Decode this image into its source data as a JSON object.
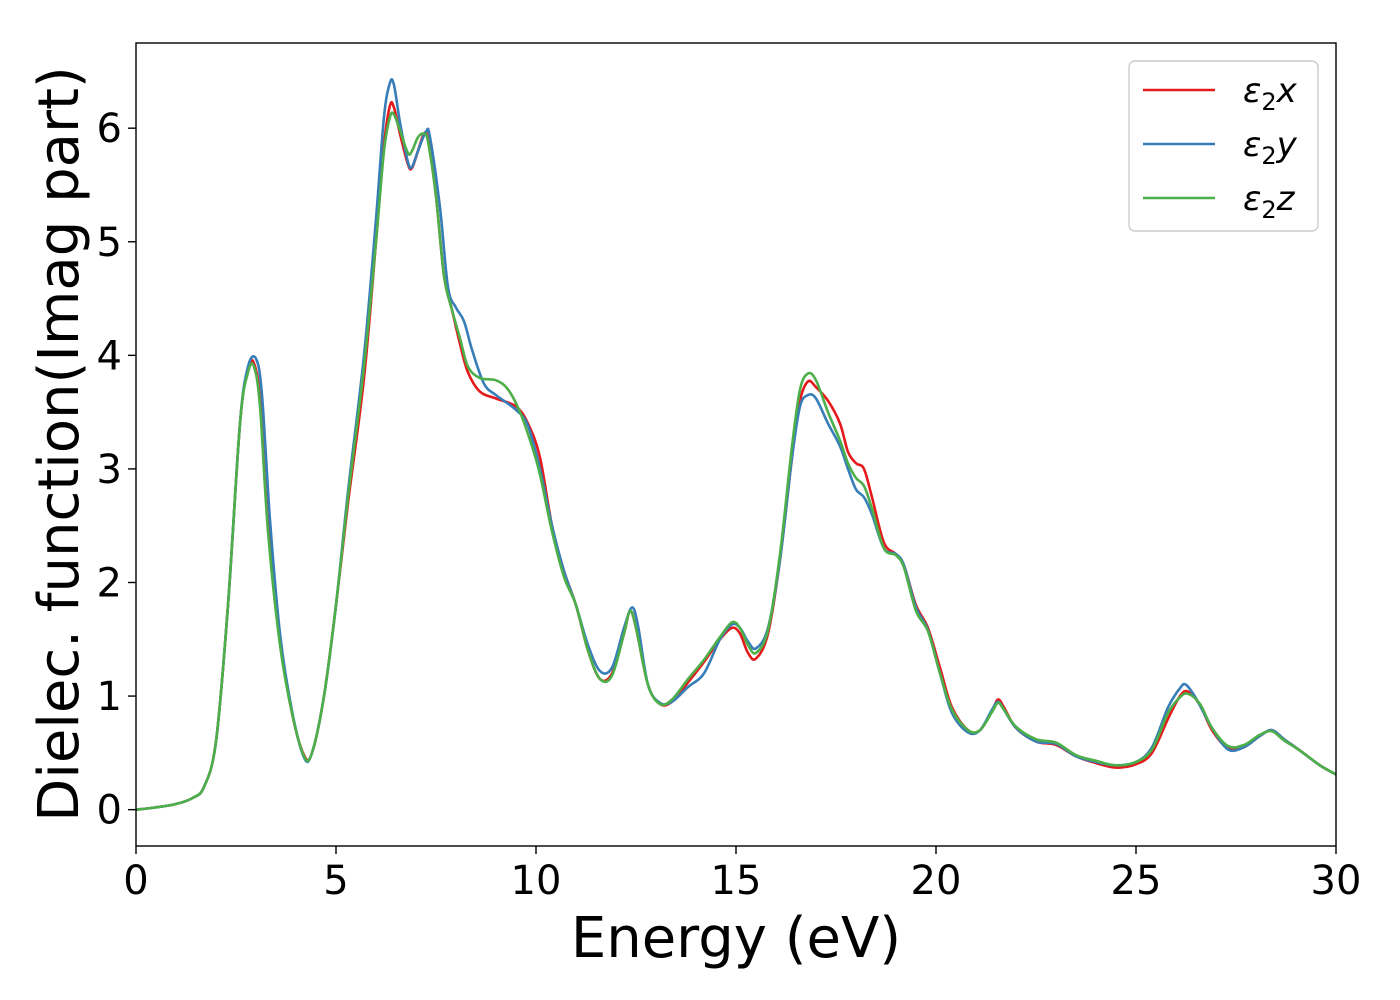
{
  "chart_data": {
    "type": "line",
    "xlabel": "Energy (eV)",
    "ylabel": "Dielec. function(Imag part)",
    "xlim": [
      0,
      30
    ],
    "ylim": [
      -0.32,
      6.75
    ],
    "xticks": [
      0,
      5,
      10,
      15,
      20,
      25,
      30
    ],
    "yticks": [
      0,
      1,
      2,
      3,
      4,
      5,
      6
    ],
    "grid": false,
    "legend_position": "top-right",
    "series": [
      {
        "name": "ε₂x",
        "legend_main": "ε",
        "legend_sub": "2",
        "legend_axis": "x",
        "color": "#e41a1c",
        "points": [
          [
            0,
            0.0
          ],
          [
            0.5,
            0.02
          ],
          [
            1.0,
            0.05
          ],
          [
            1.4,
            0.1
          ],
          [
            1.7,
            0.2
          ],
          [
            2.0,
            0.6
          ],
          [
            2.3,
            1.8
          ],
          [
            2.6,
            3.4
          ],
          [
            2.8,
            3.88
          ],
          [
            2.95,
            3.93
          ],
          [
            3.1,
            3.6
          ],
          [
            3.3,
            2.5
          ],
          [
            3.6,
            1.5
          ],
          [
            3.9,
            0.85
          ],
          [
            4.2,
            0.48
          ],
          [
            4.4,
            0.5
          ],
          [
            4.7,
            1.0
          ],
          [
            5.0,
            1.8
          ],
          [
            5.3,
            2.7
          ],
          [
            5.7,
            3.8
          ],
          [
            6.0,
            5.0
          ],
          [
            6.2,
            5.85
          ],
          [
            6.35,
            6.2
          ],
          [
            6.45,
            6.18
          ],
          [
            6.6,
            5.95
          ],
          [
            6.8,
            5.68
          ],
          [
            6.9,
            5.65
          ],
          [
            7.05,
            5.8
          ],
          [
            7.2,
            5.95
          ],
          [
            7.3,
            5.9
          ],
          [
            7.5,
            5.4
          ],
          [
            7.7,
            4.7
          ],
          [
            7.9,
            4.4
          ],
          [
            8.1,
            4.1
          ],
          [
            8.3,
            3.85
          ],
          [
            8.6,
            3.68
          ],
          [
            9.0,
            3.62
          ],
          [
            9.5,
            3.55
          ],
          [
            9.8,
            3.4
          ],
          [
            10.1,
            3.1
          ],
          [
            10.4,
            2.5
          ],
          [
            10.7,
            2.1
          ],
          [
            11.0,
            1.8
          ],
          [
            11.3,
            1.4
          ],
          [
            11.6,
            1.15
          ],
          [
            11.9,
            1.2
          ],
          [
            12.2,
            1.55
          ],
          [
            12.35,
            1.75
          ],
          [
            12.5,
            1.6
          ],
          [
            12.8,
            1.1
          ],
          [
            13.1,
            0.93
          ],
          [
            13.4,
            0.95
          ],
          [
            13.8,
            1.12
          ],
          [
            14.2,
            1.3
          ],
          [
            14.6,
            1.5
          ],
          [
            14.9,
            1.6
          ],
          [
            15.1,
            1.55
          ],
          [
            15.3,
            1.38
          ],
          [
            15.5,
            1.33
          ],
          [
            15.8,
            1.55
          ],
          [
            16.1,
            2.2
          ],
          [
            16.4,
            3.1
          ],
          [
            16.6,
            3.6
          ],
          [
            16.8,
            3.77
          ],
          [
            17.0,
            3.72
          ],
          [
            17.3,
            3.6
          ],
          [
            17.6,
            3.4
          ],
          [
            17.8,
            3.15
          ],
          [
            18.0,
            3.05
          ],
          [
            18.2,
            3.0
          ],
          [
            18.4,
            2.75
          ],
          [
            18.7,
            2.35
          ],
          [
            19.0,
            2.25
          ],
          [
            19.2,
            2.15
          ],
          [
            19.5,
            1.8
          ],
          [
            19.8,
            1.6
          ],
          [
            20.1,
            1.25
          ],
          [
            20.4,
            0.9
          ],
          [
            20.8,
            0.7
          ],
          [
            21.1,
            0.7
          ],
          [
            21.4,
            0.87
          ],
          [
            21.55,
            0.97
          ],
          [
            21.7,
            0.9
          ],
          [
            22.0,
            0.72
          ],
          [
            22.5,
            0.6
          ],
          [
            23.0,
            0.57
          ],
          [
            23.5,
            0.47
          ],
          [
            24.0,
            0.41
          ],
          [
            24.5,
            0.37
          ],
          [
            25.0,
            0.4
          ],
          [
            25.4,
            0.5
          ],
          [
            25.8,
            0.8
          ],
          [
            26.1,
            1.0
          ],
          [
            26.3,
            1.04
          ],
          [
            26.6,
            0.92
          ],
          [
            26.9,
            0.7
          ],
          [
            27.3,
            0.54
          ],
          [
            27.7,
            0.55
          ],
          [
            28.1,
            0.65
          ],
          [
            28.4,
            0.7
          ],
          [
            28.7,
            0.62
          ],
          [
            29.1,
            0.52
          ],
          [
            29.6,
            0.39
          ],
          [
            30.0,
            0.31
          ]
        ]
      },
      {
        "name": "ε₂y",
        "legend_main": "ε",
        "legend_sub": "2",
        "legend_axis": "y",
        "color": "#377eb8",
        "points": [
          [
            0,
            0.0
          ],
          [
            0.5,
            0.02
          ],
          [
            1.0,
            0.05
          ],
          [
            1.4,
            0.1
          ],
          [
            1.7,
            0.2
          ],
          [
            2.0,
            0.6
          ],
          [
            2.3,
            1.8
          ],
          [
            2.6,
            3.4
          ],
          [
            2.8,
            3.9
          ],
          [
            3.0,
            3.97
          ],
          [
            3.15,
            3.65
          ],
          [
            3.35,
            2.55
          ],
          [
            3.6,
            1.55
          ],
          [
            3.9,
            0.87
          ],
          [
            4.2,
            0.46
          ],
          [
            4.4,
            0.5
          ],
          [
            4.7,
            1.0
          ],
          [
            5.0,
            1.8
          ],
          [
            5.3,
            2.8
          ],
          [
            5.7,
            4.0
          ],
          [
            6.0,
            5.2
          ],
          [
            6.2,
            6.1
          ],
          [
            6.35,
            6.4
          ],
          [
            6.45,
            6.38
          ],
          [
            6.6,
            6.05
          ],
          [
            6.8,
            5.7
          ],
          [
            6.9,
            5.66
          ],
          [
            7.05,
            5.8
          ],
          [
            7.25,
            5.97
          ],
          [
            7.35,
            5.92
          ],
          [
            7.6,
            5.3
          ],
          [
            7.8,
            4.6
          ],
          [
            8.0,
            4.42
          ],
          [
            8.2,
            4.3
          ],
          [
            8.4,
            4.05
          ],
          [
            8.7,
            3.75
          ],
          [
            9.0,
            3.65
          ],
          [
            9.5,
            3.52
          ],
          [
            9.8,
            3.38
          ],
          [
            10.1,
            3.0
          ],
          [
            10.4,
            2.5
          ],
          [
            10.7,
            2.1
          ],
          [
            11.0,
            1.8
          ],
          [
            11.3,
            1.45
          ],
          [
            11.6,
            1.22
          ],
          [
            11.9,
            1.25
          ],
          [
            12.2,
            1.6
          ],
          [
            12.4,
            1.78
          ],
          [
            12.55,
            1.62
          ],
          [
            12.8,
            1.1
          ],
          [
            13.1,
            0.94
          ],
          [
            13.4,
            0.95
          ],
          [
            13.8,
            1.08
          ],
          [
            14.2,
            1.2
          ],
          [
            14.6,
            1.5
          ],
          [
            14.9,
            1.63
          ],
          [
            15.1,
            1.6
          ],
          [
            15.3,
            1.48
          ],
          [
            15.5,
            1.42
          ],
          [
            15.8,
            1.6
          ],
          [
            16.1,
            2.2
          ],
          [
            16.4,
            3.1
          ],
          [
            16.6,
            3.55
          ],
          [
            16.8,
            3.65
          ],
          [
            17.0,
            3.62
          ],
          [
            17.3,
            3.4
          ],
          [
            17.6,
            3.2
          ],
          [
            17.8,
            3.0
          ],
          [
            18.0,
            2.82
          ],
          [
            18.2,
            2.75
          ],
          [
            18.4,
            2.6
          ],
          [
            18.7,
            2.3
          ],
          [
            19.0,
            2.25
          ],
          [
            19.2,
            2.15
          ],
          [
            19.5,
            1.78
          ],
          [
            19.8,
            1.58
          ],
          [
            20.1,
            1.2
          ],
          [
            20.4,
            0.85
          ],
          [
            20.8,
            0.68
          ],
          [
            21.1,
            0.7
          ],
          [
            21.4,
            0.88
          ],
          [
            21.55,
            0.95
          ],
          [
            21.7,
            0.88
          ],
          [
            22.0,
            0.72
          ],
          [
            22.5,
            0.6
          ],
          [
            23.0,
            0.58
          ],
          [
            23.5,
            0.47
          ],
          [
            24.0,
            0.42
          ],
          [
            24.5,
            0.39
          ],
          [
            25.0,
            0.42
          ],
          [
            25.4,
            0.55
          ],
          [
            25.8,
            0.9
          ],
          [
            26.1,
            1.07
          ],
          [
            26.25,
            1.1
          ],
          [
            26.5,
            0.98
          ],
          [
            26.9,
            0.72
          ],
          [
            27.3,
            0.53
          ],
          [
            27.7,
            0.55
          ],
          [
            28.1,
            0.65
          ],
          [
            28.4,
            0.7
          ],
          [
            28.7,
            0.62
          ],
          [
            29.1,
            0.52
          ],
          [
            29.6,
            0.39
          ],
          [
            30.0,
            0.31
          ]
        ]
      },
      {
        "name": "ε₂z",
        "legend_main": "ε",
        "legend_sub": "2",
        "legend_axis": "z",
        "color": "#4daf4a",
        "points": [
          [
            0,
            0.0
          ],
          [
            0.5,
            0.02
          ],
          [
            1.0,
            0.05
          ],
          [
            1.4,
            0.1
          ],
          [
            1.7,
            0.2
          ],
          [
            2.0,
            0.6
          ],
          [
            2.3,
            1.8
          ],
          [
            2.6,
            3.4
          ],
          [
            2.8,
            3.85
          ],
          [
            2.95,
            3.9
          ],
          [
            3.1,
            3.55
          ],
          [
            3.3,
            2.45
          ],
          [
            3.6,
            1.45
          ],
          [
            3.9,
            0.85
          ],
          [
            4.2,
            0.47
          ],
          [
            4.4,
            0.5
          ],
          [
            4.7,
            1.0
          ],
          [
            5.0,
            1.8
          ],
          [
            5.3,
            2.75
          ],
          [
            5.7,
            3.9
          ],
          [
            6.0,
            5.0
          ],
          [
            6.2,
            5.8
          ],
          [
            6.35,
            6.1
          ],
          [
            6.45,
            6.12
          ],
          [
            6.6,
            5.98
          ],
          [
            6.8,
            5.78
          ],
          [
            6.9,
            5.8
          ],
          [
            7.05,
            5.92
          ],
          [
            7.2,
            5.95
          ],
          [
            7.3,
            5.88
          ],
          [
            7.5,
            5.4
          ],
          [
            7.7,
            4.7
          ],
          [
            7.9,
            4.4
          ],
          [
            8.1,
            4.15
          ],
          [
            8.3,
            3.9
          ],
          [
            8.6,
            3.8
          ],
          [
            9.0,
            3.78
          ],
          [
            9.3,
            3.7
          ],
          [
            9.6,
            3.5
          ],
          [
            9.9,
            3.2
          ],
          [
            10.1,
            2.95
          ],
          [
            10.4,
            2.45
          ],
          [
            10.7,
            2.05
          ],
          [
            11.0,
            1.8
          ],
          [
            11.3,
            1.4
          ],
          [
            11.6,
            1.15
          ],
          [
            11.9,
            1.18
          ],
          [
            12.2,
            1.55
          ],
          [
            12.35,
            1.75
          ],
          [
            12.5,
            1.6
          ],
          [
            12.8,
            1.1
          ],
          [
            13.1,
            0.93
          ],
          [
            13.4,
            0.97
          ],
          [
            13.8,
            1.15
          ],
          [
            14.2,
            1.32
          ],
          [
            14.6,
            1.52
          ],
          [
            14.9,
            1.65
          ],
          [
            15.1,
            1.6
          ],
          [
            15.3,
            1.45
          ],
          [
            15.5,
            1.38
          ],
          [
            15.8,
            1.58
          ],
          [
            16.1,
            2.25
          ],
          [
            16.4,
            3.2
          ],
          [
            16.6,
            3.7
          ],
          [
            16.8,
            3.84
          ],
          [
            17.0,
            3.78
          ],
          [
            17.3,
            3.5
          ],
          [
            17.6,
            3.25
          ],
          [
            17.8,
            3.05
          ],
          [
            18.0,
            2.92
          ],
          [
            18.2,
            2.85
          ],
          [
            18.4,
            2.65
          ],
          [
            18.7,
            2.3
          ],
          [
            19.0,
            2.24
          ],
          [
            19.2,
            2.13
          ],
          [
            19.5,
            1.75
          ],
          [
            19.8,
            1.57
          ],
          [
            20.1,
            1.2
          ],
          [
            20.4,
            0.88
          ],
          [
            20.8,
            0.7
          ],
          [
            21.1,
            0.7
          ],
          [
            21.4,
            0.86
          ],
          [
            21.55,
            0.94
          ],
          [
            21.7,
            0.88
          ],
          [
            22.0,
            0.73
          ],
          [
            22.5,
            0.62
          ],
          [
            23.0,
            0.59
          ],
          [
            23.5,
            0.48
          ],
          [
            24.0,
            0.43
          ],
          [
            24.5,
            0.39
          ],
          [
            25.0,
            0.42
          ],
          [
            25.4,
            0.53
          ],
          [
            25.8,
            0.85
          ],
          [
            26.1,
            0.99
          ],
          [
            26.3,
            1.02
          ],
          [
            26.6,
            0.93
          ],
          [
            26.9,
            0.72
          ],
          [
            27.3,
            0.56
          ],
          [
            27.7,
            0.57
          ],
          [
            28.1,
            0.66
          ],
          [
            28.4,
            0.69
          ],
          [
            28.7,
            0.61
          ],
          [
            29.1,
            0.52
          ],
          [
            29.6,
            0.39
          ],
          [
            30.0,
            0.31
          ]
        ]
      }
    ]
  }
}
